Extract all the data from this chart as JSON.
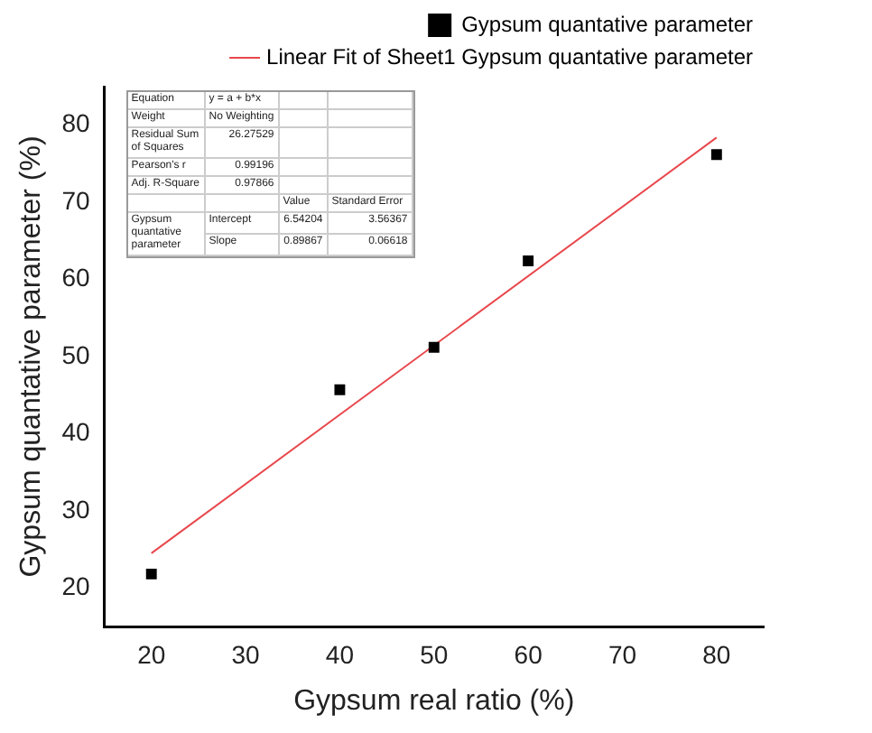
{
  "chart_data": {
    "type": "scatter",
    "xlabel": "Gypsum real ratio (%)",
    "ylabel": "Gypsum quantative parameter (%)",
    "xlim": [
      15,
      85
    ],
    "xticks": [
      20,
      30,
      40,
      50,
      60,
      70,
      80
    ],
    "ylim": [
      15,
      85
    ],
    "yticks": [
      20,
      30,
      40,
      50,
      60,
      70,
      80
    ],
    "grid": false,
    "legend": "top right",
    "series": [
      {
        "name": "Gypsum quantative parameter",
        "marker": "square",
        "color": "#000000",
        "x": [
          20,
          40,
          50,
          60,
          80
        ],
        "values": [
          21.8,
          45.7,
          51.2,
          62.4,
          76.2
        ]
      },
      {
        "name": "Linear Fit of Sheet1 Gypsum quantative parameter",
        "type": "line",
        "marker": "none",
        "color": "#e8474c",
        "x": [
          20,
          80
        ],
        "values": [
          24.5,
          78.4
        ]
      }
    ],
    "annotations": [
      "Equation",
      "y = a + b*x",
      "Weight",
      "No Weighting",
      "Residual Sum of Squares",
      "26.27529",
      "Pearson's r",
      "0.99196",
      "Adj. R-Square",
      "0.97866",
      "Value",
      "Standard Error",
      "Gypsum quantative parameter",
      "Intercept",
      "6.54204",
      "3.56367",
      "Slope",
      "0.89867",
      "0.06618"
    ]
  }
}
